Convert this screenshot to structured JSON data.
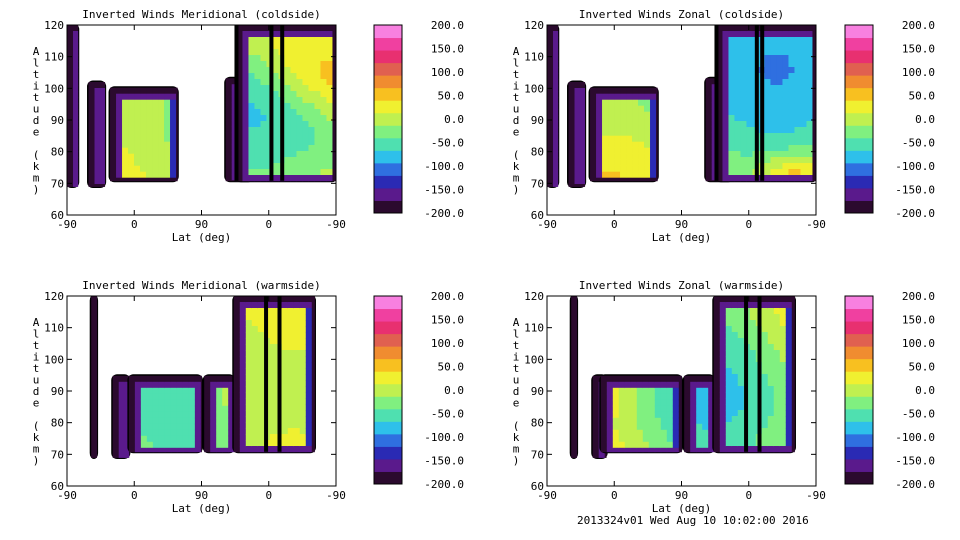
{
  "footer": "2013324v01 Wed Aug 10 10:02:00 2016",
  "colorbar": {
    "ticks": [
      "200.0",
      "150.0",
      "100.0",
      "50.0",
      "0.0",
      "-50.0",
      "-100.0",
      "-150.0",
      "-200.0"
    ],
    "range": [
      -200,
      200
    ],
    "colors": [
      "#2b0a2e",
      "#5a1a8c",
      "#2a2ab4",
      "#2f6fe0",
      "#2ec0ea",
      "#4fe0b0",
      "#80f080",
      "#c0f050",
      "#f0f030",
      "#f8c020",
      "#f08c30",
      "#e06050",
      "#e83070",
      "#f040a0",
      "#f880e0"
    ]
  },
  "chart_data": [
    {
      "type": "heatmap",
      "title": "Inverted Winds Meridional (coldside)",
      "xlabel": "Lat (deg)",
      "ylabel": "Altitude (km)",
      "xticks": [
        "-90",
        "0",
        "90",
        "0",
        "-90"
      ],
      "yticks": [
        "60",
        "70",
        "80",
        "90",
        "100",
        "110",
        "120"
      ],
      "ylim": [
        60,
        120
      ],
      "zlim": [
        -200,
        200
      ]
    },
    {
      "type": "heatmap",
      "title": "Inverted Winds Zonal (coldside)",
      "xlabel": "Lat (deg)",
      "ylabel": "Altitude (km)",
      "xticks": [
        "-90",
        "0",
        "90",
        "0",
        "-90"
      ],
      "yticks": [
        "60",
        "70",
        "80",
        "90",
        "100",
        "110",
        "120"
      ],
      "ylim": [
        60,
        120
      ],
      "zlim": [
        -200,
        200
      ]
    },
    {
      "type": "heatmap",
      "title": "Inverted Winds Meridional (warmside)",
      "xlabel": "Lat (deg)",
      "ylabel": "Altitude (km)",
      "xticks": [
        "-90",
        "0",
        "90",
        "0",
        "-90"
      ],
      "yticks": [
        "60",
        "70",
        "80",
        "90",
        "100",
        "110",
        "120"
      ],
      "ylim": [
        60,
        120
      ],
      "zlim": [
        -200,
        200
      ]
    },
    {
      "type": "heatmap",
      "title": "Inverted Winds Zonal (warmside)",
      "xlabel": "Lat (deg)",
      "ylabel": "Altitude (km)",
      "xticks": [
        "-90",
        "0",
        "90",
        "0",
        "-90"
      ],
      "yticks": [
        "60",
        "70",
        "80",
        "90",
        "100",
        "110",
        "120"
      ],
      "ylim": [
        60,
        120
      ],
      "zlim": [
        -200,
        200
      ]
    }
  ]
}
